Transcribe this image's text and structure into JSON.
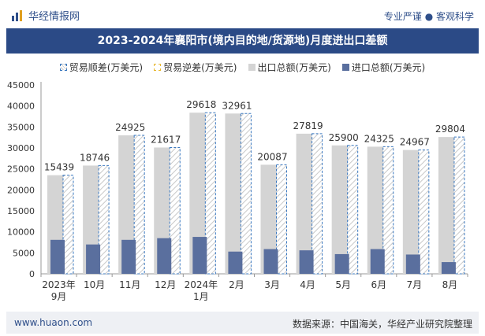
{
  "header": {
    "brand": "华经情报网",
    "tagline": "专业严谨 ● 客观科学"
  },
  "footer": {
    "url": "www.huaon.com",
    "source": "数据来源：中国海关，华经产业研究院整理"
  },
  "colors": {
    "title_bg": "#2b4a86",
    "export": "#d4d4d4",
    "import": "#5a6f9e",
    "surplus_border": "#3a78c0",
    "deficit_border": "#e8b830"
  },
  "chart_data": {
    "type": "bar",
    "title": "2023-2024年襄阳市(境内目的地/货源地)月度进出口差额",
    "categories": [
      "2023年\n9月",
      "10月",
      "11月",
      "12月",
      "2024年\n1月",
      "2月",
      "3月",
      "4月",
      "5月",
      "6月",
      "7月",
      "8月"
    ],
    "series": [
      {
        "name": "贸易顺差(万美元)",
        "values": [
          15439,
          18746,
          24925,
          21617,
          29618,
          32961,
          20087,
          27819,
          25900,
          24325,
          24967,
          29804
        ]
      },
      {
        "name": "贸易逆差(万美元)",
        "values": [
          0,
          0,
          0,
          0,
          0,
          0,
          0,
          0,
          0,
          0,
          0,
          0
        ]
      },
      {
        "name": "出口总额(万美元)",
        "values": [
          23500,
          25800,
          33000,
          30100,
          38400,
          38200,
          26000,
          33400,
          30600,
          30300,
          29500,
          32600
        ]
      },
      {
        "name": "进口总额(万美元)",
        "values": [
          8100,
          7000,
          8100,
          8500,
          8800,
          5300,
          5900,
          5600,
          4700,
          5900,
          4600,
          2800
        ]
      }
    ],
    "data_labels": [
      "15439",
      "18746",
      "24925",
      "21617",
      "29618",
      "32961",
      "20087",
      "27819",
      "25900",
      "24325",
      "24967",
      "29804"
    ],
    "y_ticks": [
      "0",
      "5000",
      "10000",
      "15000",
      "20000",
      "25000",
      "30000",
      "35000",
      "40000",
      "45000"
    ],
    "ylim": [
      0,
      45000
    ],
    "legend_position": "top"
  }
}
